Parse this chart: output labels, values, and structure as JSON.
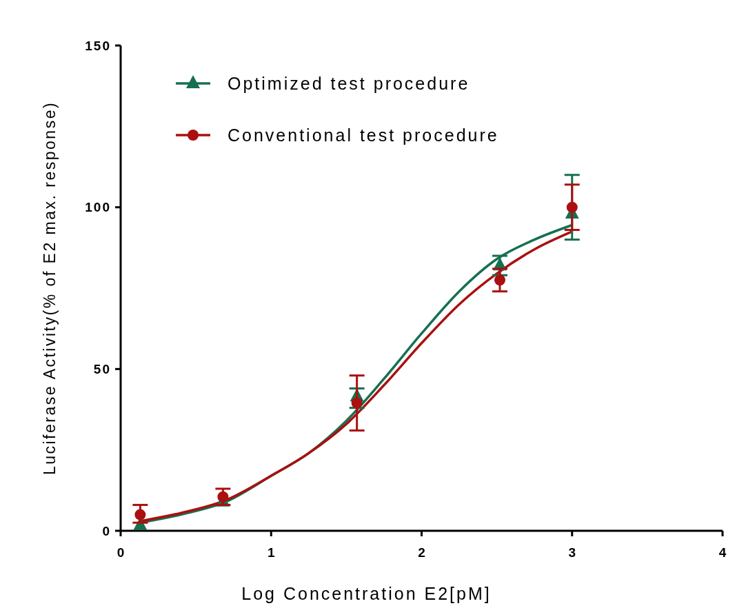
{
  "chart_data": {
    "type": "scatter",
    "xlabel": "Log Concentration E2[pM]",
    "ylabel": "Luciferase  Activity(% of E2 max. response)",
    "xlim": [
      0,
      4
    ],
    "xticks": [
      0,
      1,
      2,
      3,
      4
    ],
    "ylim": [
      0,
      150
    ],
    "yticks": [
      0,
      50,
      100,
      150
    ],
    "grid": false,
    "legend": "top left",
    "series": [
      {
        "type": "line",
        "color": "#157050",
        "marker": "none",
        "x": [
          0.13,
          0.4,
          0.7,
          1,
          1.25,
          1.5,
          1.75,
          2,
          2.25,
          2.5,
          2.75,
          3
        ],
        "values": [
          2.5,
          5,
          9,
          17,
          24,
          34,
          47,
          61,
          74,
          84,
          90,
          94.5
        ]
      },
      {
        "type": "line",
        "color": "#aa1010",
        "marker": "none",
        "x": [
          0.13,
          0.4,
          0.7,
          1,
          1.25,
          1.5,
          1.75,
          2,
          2.25,
          2.5,
          2.75,
          3
        ],
        "values": [
          3,
          5.5,
          9.5,
          17,
          24,
          33,
          45,
          58,
          70,
          79.5,
          87,
          92.5
        ]
      },
      {
        "name": "Optimized test procedure",
        "color": "#157050",
        "marker": "triangle",
        "x": [
          0.13,
          0.68,
          1.57,
          2.52,
          3
        ],
        "values": [
          1.7,
          9,
          41.5,
          82,
          98
        ],
        "errors": [
          null,
          null,
          [
            38,
            44
          ],
          [
            79,
            85
          ],
          [
            90,
            110
          ]
        ]
      },
      {
        "name": "Conventional test procedure",
        "color": "#aa1010",
        "marker": "circle",
        "x": [
          0.13,
          0.68,
          1.57,
          2.52,
          3
        ],
        "values": [
          5,
          10.5,
          39.5,
          77.5,
          100
        ],
        "errors": [
          [
            2.5,
            8
          ],
          [
            8,
            13
          ],
          [
            31,
            48
          ],
          [
            74,
            81
          ],
          [
            93,
            107
          ]
        ]
      }
    ]
  }
}
